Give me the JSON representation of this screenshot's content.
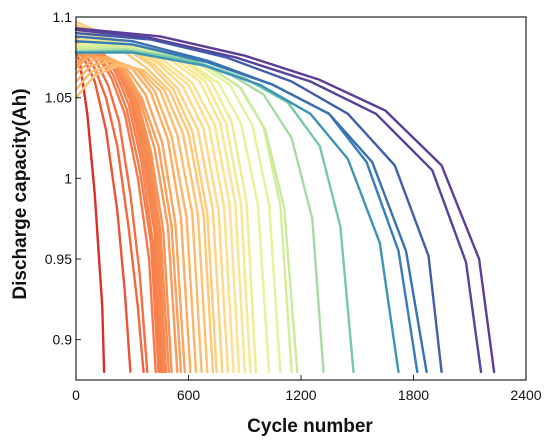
{
  "chart_data": {
    "type": "line",
    "xlabel": "Cycle number",
    "ylabel": "Discharge capacity(Ah)",
    "xlim": [
      0,
      2400
    ],
    "ylim": [
      0.875,
      1.1
    ],
    "xticks": [
      "0",
      "600",
      "1200",
      "1800",
      "2400"
    ],
    "xtick_values": [
      0,
      600,
      1200,
      1800,
      2400
    ],
    "yticks": [
      "0.9",
      "0.95",
      "1",
      "1.05",
      "1.1"
    ],
    "ytick_values": [
      0.9,
      0.95,
      1.0,
      1.05,
      1.1
    ],
    "grid": false,
    "legend": "none",
    "colormap": "Spectral (red = short cycle life, violet = long cycle life)",
    "series": [
      {
        "x": [
          0,
          20,
          60,
          100,
          140,
          150
        ],
        "y": [
          1.078,
          1.072,
          1.04,
          0.99,
          0.92,
          0.88
        ]
      },
      {
        "x": [
          0,
          40,
          100,
          160,
          220,
          260,
          290
        ],
        "y": [
          1.08,
          1.075,
          1.06,
          1.03,
          0.98,
          0.93,
          0.88
        ]
      },
      {
        "x": [
          0,
          40,
          100,
          160,
          220,
          280,
          330,
          360
        ],
        "y": [
          1.082,
          1.078,
          1.068,
          1.05,
          1.02,
          0.97,
          0.92,
          0.88
        ]
      },
      {
        "x": [
          0,
          50,
          110,
          170,
          230,
          290,
          340,
          380
        ],
        "y": [
          1.084,
          1.082,
          1.072,
          1.058,
          1.035,
          0.99,
          0.94,
          0.88
        ]
      },
      {
        "x": [
          0,
          50,
          120,
          190,
          260,
          330,
          390,
          425
        ],
        "y": [
          1.085,
          1.083,
          1.075,
          1.062,
          1.04,
          1.0,
          0.95,
          0.88
        ]
      },
      {
        "x": [
          0,
          50,
          120,
          200,
          270,
          340,
          400,
          440
        ],
        "y": [
          1.086,
          1.084,
          1.076,
          1.064,
          1.043,
          1.005,
          0.96,
          0.88
        ]
      },
      {
        "x": [
          0,
          50,
          130,
          210,
          280,
          350,
          410,
          450
        ],
        "y": [
          1.087,
          1.085,
          1.078,
          1.066,
          1.046,
          1.01,
          0.96,
          0.88
        ]
      },
      {
        "x": [
          0,
          60,
          140,
          220,
          290,
          360,
          420,
          460
        ],
        "y": [
          1.085,
          1.084,
          1.078,
          1.067,
          1.048,
          1.012,
          0.965,
          0.88
        ]
      },
      {
        "x": [
          0,
          60,
          140,
          220,
          300,
          370,
          430,
          470
        ],
        "y": [
          1.083,
          1.083,
          1.077,
          1.067,
          1.048,
          1.014,
          0.965,
          0.88
        ]
      },
      {
        "x": [
          0,
          60,
          140,
          230,
          310,
          380,
          440,
          480
        ],
        "y": [
          1.08,
          1.081,
          1.076,
          1.066,
          1.048,
          1.014,
          0.967,
          0.88
        ]
      },
      {
        "x": [
          0,
          60,
          150,
          240,
          320,
          390,
          450,
          495
        ],
        "y": [
          1.078,
          1.08,
          1.075,
          1.066,
          1.048,
          1.015,
          0.968,
          0.88
        ]
      },
      {
        "x": [
          0,
          60,
          150,
          240,
          330,
          400,
          465,
          510
        ],
        "y": [
          1.075,
          1.078,
          1.075,
          1.066,
          1.048,
          1.016,
          0.968,
          0.88
        ]
      },
      {
        "x": [
          0,
          60,
          160,
          250,
          340,
          420,
          490,
          540
        ],
        "y": [
          1.072,
          1.077,
          1.075,
          1.066,
          1.049,
          1.018,
          0.97,
          0.88
        ]
      },
      {
        "x": [
          0,
          60,
          160,
          260,
          350,
          440,
          510,
          560
        ],
        "y": [
          1.07,
          1.076,
          1.075,
          1.067,
          1.05,
          1.02,
          0.97,
          0.88
        ]
      },
      {
        "x": [
          0,
          60,
          170,
          270,
          370,
          460,
          530,
          580
        ],
        "y": [
          1.068,
          1.075,
          1.075,
          1.068,
          1.052,
          1.022,
          0.972,
          0.88
        ]
      },
      {
        "x": [
          0,
          80,
          190,
          300,
          400,
          490,
          560,
          610
        ],
        "y": [
          1.065,
          1.073,
          1.074,
          1.068,
          1.053,
          1.024,
          0.975,
          0.88
        ]
      },
      {
        "x": [
          0,
          80,
          200,
          320,
          420,
          510,
          590,
          640
        ],
        "y": [
          1.06,
          1.07,
          1.073,
          1.068,
          1.054,
          1.026,
          0.976,
          0.88
        ]
      },
      {
        "x": [
          0,
          80,
          210,
          340,
          450,
          540,
          620,
          670
        ],
        "y": [
          1.055,
          1.066,
          1.071,
          1.067,
          1.054,
          1.027,
          0.978,
          0.88
        ]
      },
      {
        "x": [
          0,
          100,
          230,
          360,
          470,
          570,
          650,
          700
        ],
        "y": [
          1.05,
          1.064,
          1.07,
          1.067,
          1.055,
          1.028,
          0.978,
          0.88
        ]
      },
      {
        "x": [
          0,
          100,
          240,
          380,
          500,
          600,
          680,
          730
        ],
        "y": [
          1.095,
          1.09,
          1.08,
          1.068,
          1.054,
          1.028,
          0.978,
          0.88
        ]
      },
      {
        "x": [
          0,
          100,
          250,
          400,
          520,
          620,
          700,
          750
        ],
        "y": [
          1.097,
          1.092,
          1.082,
          1.07,
          1.055,
          1.029,
          0.978,
          0.88
        ]
      },
      {
        "x": [
          0,
          100,
          260,
          420,
          540,
          650,
          730,
          780
        ],
        "y": [
          1.095,
          1.091,
          1.082,
          1.07,
          1.056,
          1.03,
          0.98,
          0.88
        ]
      },
      {
        "x": [
          0,
          110,
          280,
          440,
          570,
          680,
          760,
          810
        ],
        "y": [
          1.093,
          1.09,
          1.082,
          1.071,
          1.057,
          1.031,
          0.98,
          0.88
        ]
      },
      {
        "x": [
          0,
          120,
          300,
          460,
          600,
          710,
          790,
          840
        ],
        "y": [
          1.092,
          1.089,
          1.082,
          1.071,
          1.058,
          1.032,
          0.982,
          0.88
        ]
      },
      {
        "x": [
          0,
          120,
          310,
          480,
          620,
          740,
          820,
          870
        ],
        "y": [
          1.09,
          1.088,
          1.082,
          1.072,
          1.059,
          1.033,
          0.983,
          0.88
        ]
      },
      {
        "x": [
          0,
          130,
          330,
          510,
          660,
          770,
          850,
          900
        ],
        "y": [
          1.088,
          1.087,
          1.082,
          1.073,
          1.06,
          1.034,
          0.984,
          0.88
        ]
      },
      {
        "x": [
          0,
          140,
          350,
          540,
          690,
          800,
          880,
          930
        ],
        "y": [
          1.086,
          1.086,
          1.081,
          1.073,
          1.06,
          1.034,
          0.984,
          0.88
        ]
      },
      {
        "x": [
          0,
          150,
          370,
          570,
          720,
          830,
          910,
          960
        ],
        "y": [
          1.085,
          1.085,
          1.081,
          1.073,
          1.06,
          1.035,
          0.985,
          0.88
        ]
      },
      {
        "x": [
          0,
          160,
          400,
          600,
          760,
          880,
          970,
          1030
        ],
        "y": [
          1.083,
          1.084,
          1.08,
          1.072,
          1.059,
          1.034,
          0.984,
          0.88
        ]
      },
      {
        "x": [
          0,
          180,
          430,
          650,
          820,
          940,
          1030,
          1090
        ],
        "y": [
          1.082,
          1.083,
          1.079,
          1.071,
          1.058,
          1.033,
          0.984,
          0.88
        ]
      },
      {
        "x": [
          0,
          200,
          460,
          690,
          870,
          1000,
          1090,
          1150
        ],
        "y": [
          1.081,
          1.082,
          1.078,
          1.07,
          1.057,
          1.032,
          0.983,
          0.88
        ]
      },
      {
        "x": [
          0,
          200,
          480,
          710,
          880,
          1010,
          1110,
          1180
        ],
        "y": [
          1.08,
          1.081,
          1.077,
          1.069,
          1.056,
          1.03,
          0.982,
          0.88
        ]
      },
      {
        "x": [
          0,
          250,
          550,
          800,
          1000,
          1150,
          1260,
          1320
        ],
        "y": [
          1.079,
          1.08,
          1.075,
          1.066,
          1.052,
          1.025,
          0.975,
          0.88
        ]
      },
      {
        "x": [
          0,
          280,
          620,
          900,
          1130,
          1300,
          1410,
          1480
        ],
        "y": [
          1.078,
          1.079,
          1.073,
          1.062,
          1.047,
          1.02,
          0.97,
          0.88
        ]
      },
      {
        "x": [
          0,
          300,
          680,
          980,
          1250,
          1450,
          1620,
          1720
        ],
        "y": [
          1.078,
          1.078,
          1.07,
          1.058,
          1.04,
          1.012,
          0.96,
          0.88
        ]
      },
      {
        "x": [
          0,
          300,
          700,
          1050,
          1350,
          1550,
          1720,
          1820
        ],
        "y": [
          1.085,
          1.083,
          1.072,
          1.058,
          1.04,
          1.01,
          0.955,
          0.88
        ]
      },
      {
        "x": [
          0,
          300,
          700,
          1050,
          1350,
          1580,
          1760,
          1870
        ],
        "y": [
          1.088,
          1.085,
          1.073,
          1.058,
          1.04,
          1.01,
          0.955,
          0.88
        ]
      },
      {
        "x": [
          0,
          400,
          800,
          1150,
          1450,
          1700,
          1880,
          1950
        ],
        "y": [
          1.09,
          1.086,
          1.075,
          1.06,
          1.04,
          1.008,
          0.952,
          0.88
        ]
      },
      {
        "x": [
          0,
          400,
          850,
          1250,
          1600,
          1900,
          2080,
          2160
        ],
        "y": [
          1.092,
          1.087,
          1.075,
          1.06,
          1.04,
          1.005,
          0.948,
          0.88
        ]
      },
      {
        "x": [
          0,
          450,
          900,
          1300,
          1650,
          1950,
          2150,
          2230
        ],
        "y": [
          1.093,
          1.088,
          1.076,
          1.061,
          1.042,
          1.008,
          0.95,
          0.88
        ]
      }
    ]
  }
}
